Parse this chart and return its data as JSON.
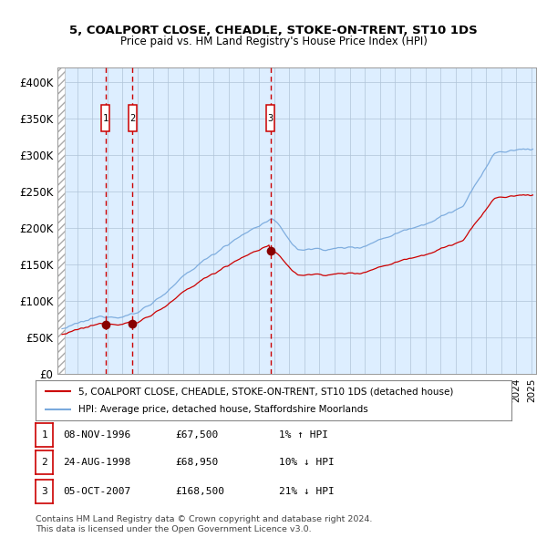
{
  "title1": "5, COALPORT CLOSE, CHEADLE, STOKE-ON-TRENT, ST10 1DS",
  "title2": "Price paid vs. HM Land Registry's House Price Index (HPI)",
  "transactions": [
    {
      "num": 1,
      "date": "08-NOV-1996",
      "date_float": 1996.86,
      "price": 67500,
      "pct": "1%",
      "dir": "↑"
    },
    {
      "num": 2,
      "date": "24-AUG-1998",
      "date_float": 1998.65,
      "price": 68950,
      "pct": "10%",
      "dir": "↓"
    },
    {
      "num": 3,
      "date": "05-OCT-2007",
      "date_float": 2007.76,
      "price": 168500,
      "pct": "21%",
      "dir": "↓"
    }
  ],
  "legend_line1": "5, COALPORT CLOSE, CHEADLE, STOKE-ON-TRENT, ST10 1DS (detached house)",
  "legend_line2": "HPI: Average price, detached house, Staffordshire Moorlands",
  "footer1": "Contains HM Land Registry data © Crown copyright and database right 2024.",
  "footer2": "This data is licensed under the Open Government Licence v3.0.",
  "ylim": [
    0,
    420000
  ],
  "yticks": [
    0,
    50000,
    100000,
    150000,
    200000,
    250000,
    300000,
    350000,
    400000
  ],
  "ytick_labels": [
    "£0",
    "£50K",
    "£100K",
    "£150K",
    "£200K",
    "£250K",
    "£300K",
    "£350K",
    "£400K"
  ],
  "bg_color": "#ddeeff",
  "grid_color": "#b0c4d8",
  "line_color_red": "#cc0000",
  "line_color_blue": "#7aaadd",
  "marker_color": "#880000",
  "vline_color": "#cc0000",
  "box_color": "#cc0000",
  "xlim_start": 1993.7,
  "xlim_end": 2025.3,
  "hatch_end": 1994.2
}
